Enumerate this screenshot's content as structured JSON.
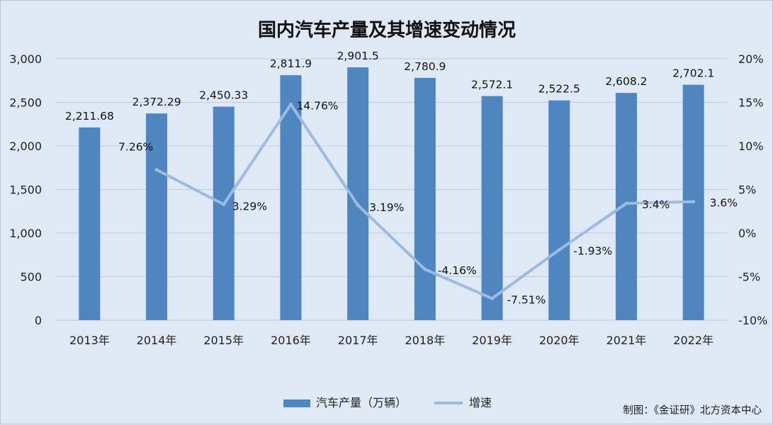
{
  "chart_data": {
    "type": "bar+line",
    "title": "国内汽车产量及其增速变动情况",
    "categories": [
      "2013年",
      "2014年",
      "2015年",
      "2016年",
      "2017年",
      "2018年",
      "2019年",
      "2020年",
      "2021年",
      "2022年"
    ],
    "series": [
      {
        "name": "汽车产量（万辆）",
        "type": "bar",
        "axis": "left",
        "values": [
          2211.68,
          2372.29,
          2450.33,
          2811.9,
          2901.5,
          2780.9,
          2572.1,
          2522.5,
          2608.2,
          2702.1
        ],
        "labels": [
          "2,211.68",
          "2,372.29",
          "2,450.33",
          "2,811.9",
          "2,901.5",
          "2,780.9",
          "2,572.1",
          "2,522.5",
          "2,608.2",
          "2,702.1"
        ]
      },
      {
        "name": "增速",
        "type": "line",
        "axis": "right",
        "values": [
          null,
          7.26,
          3.29,
          14.76,
          3.19,
          -4.16,
          -7.51,
          -1.93,
          3.4,
          3.6
        ],
        "labels": [
          "",
          "7.26%",
          "3.29%",
          "14.76%",
          "3.19%",
          "-4.16%",
          "-7.51%",
          "-1.93%",
          "3.4%",
          "3.6%"
        ]
      }
    ],
    "y_left": {
      "range": [
        0,
        3000
      ],
      "ticks": [
        0,
        500,
        1000,
        1500,
        2000,
        2500,
        3000
      ],
      "tick_labels": [
        "0",
        "500",
        "1,000",
        "1,500",
        "2,000",
        "2,500",
        "3,000"
      ]
    },
    "y_right": {
      "range": [
        -10,
        20
      ],
      "ticks": [
        -10,
        -5,
        0,
        5,
        10,
        15,
        20
      ],
      "tick_labels": [
        "-10%",
        "-5%",
        "0%",
        "5%",
        "10%",
        "15%",
        "20%"
      ]
    },
    "grid": true,
    "legend_position": "bottom-center",
    "colors": {
      "bar": "#4f86bf",
      "line": "#9bbbe2",
      "grid": "#bfccdc",
      "background": "#dfe9f5"
    }
  },
  "source": "制图：《金证研》北方资本中心"
}
